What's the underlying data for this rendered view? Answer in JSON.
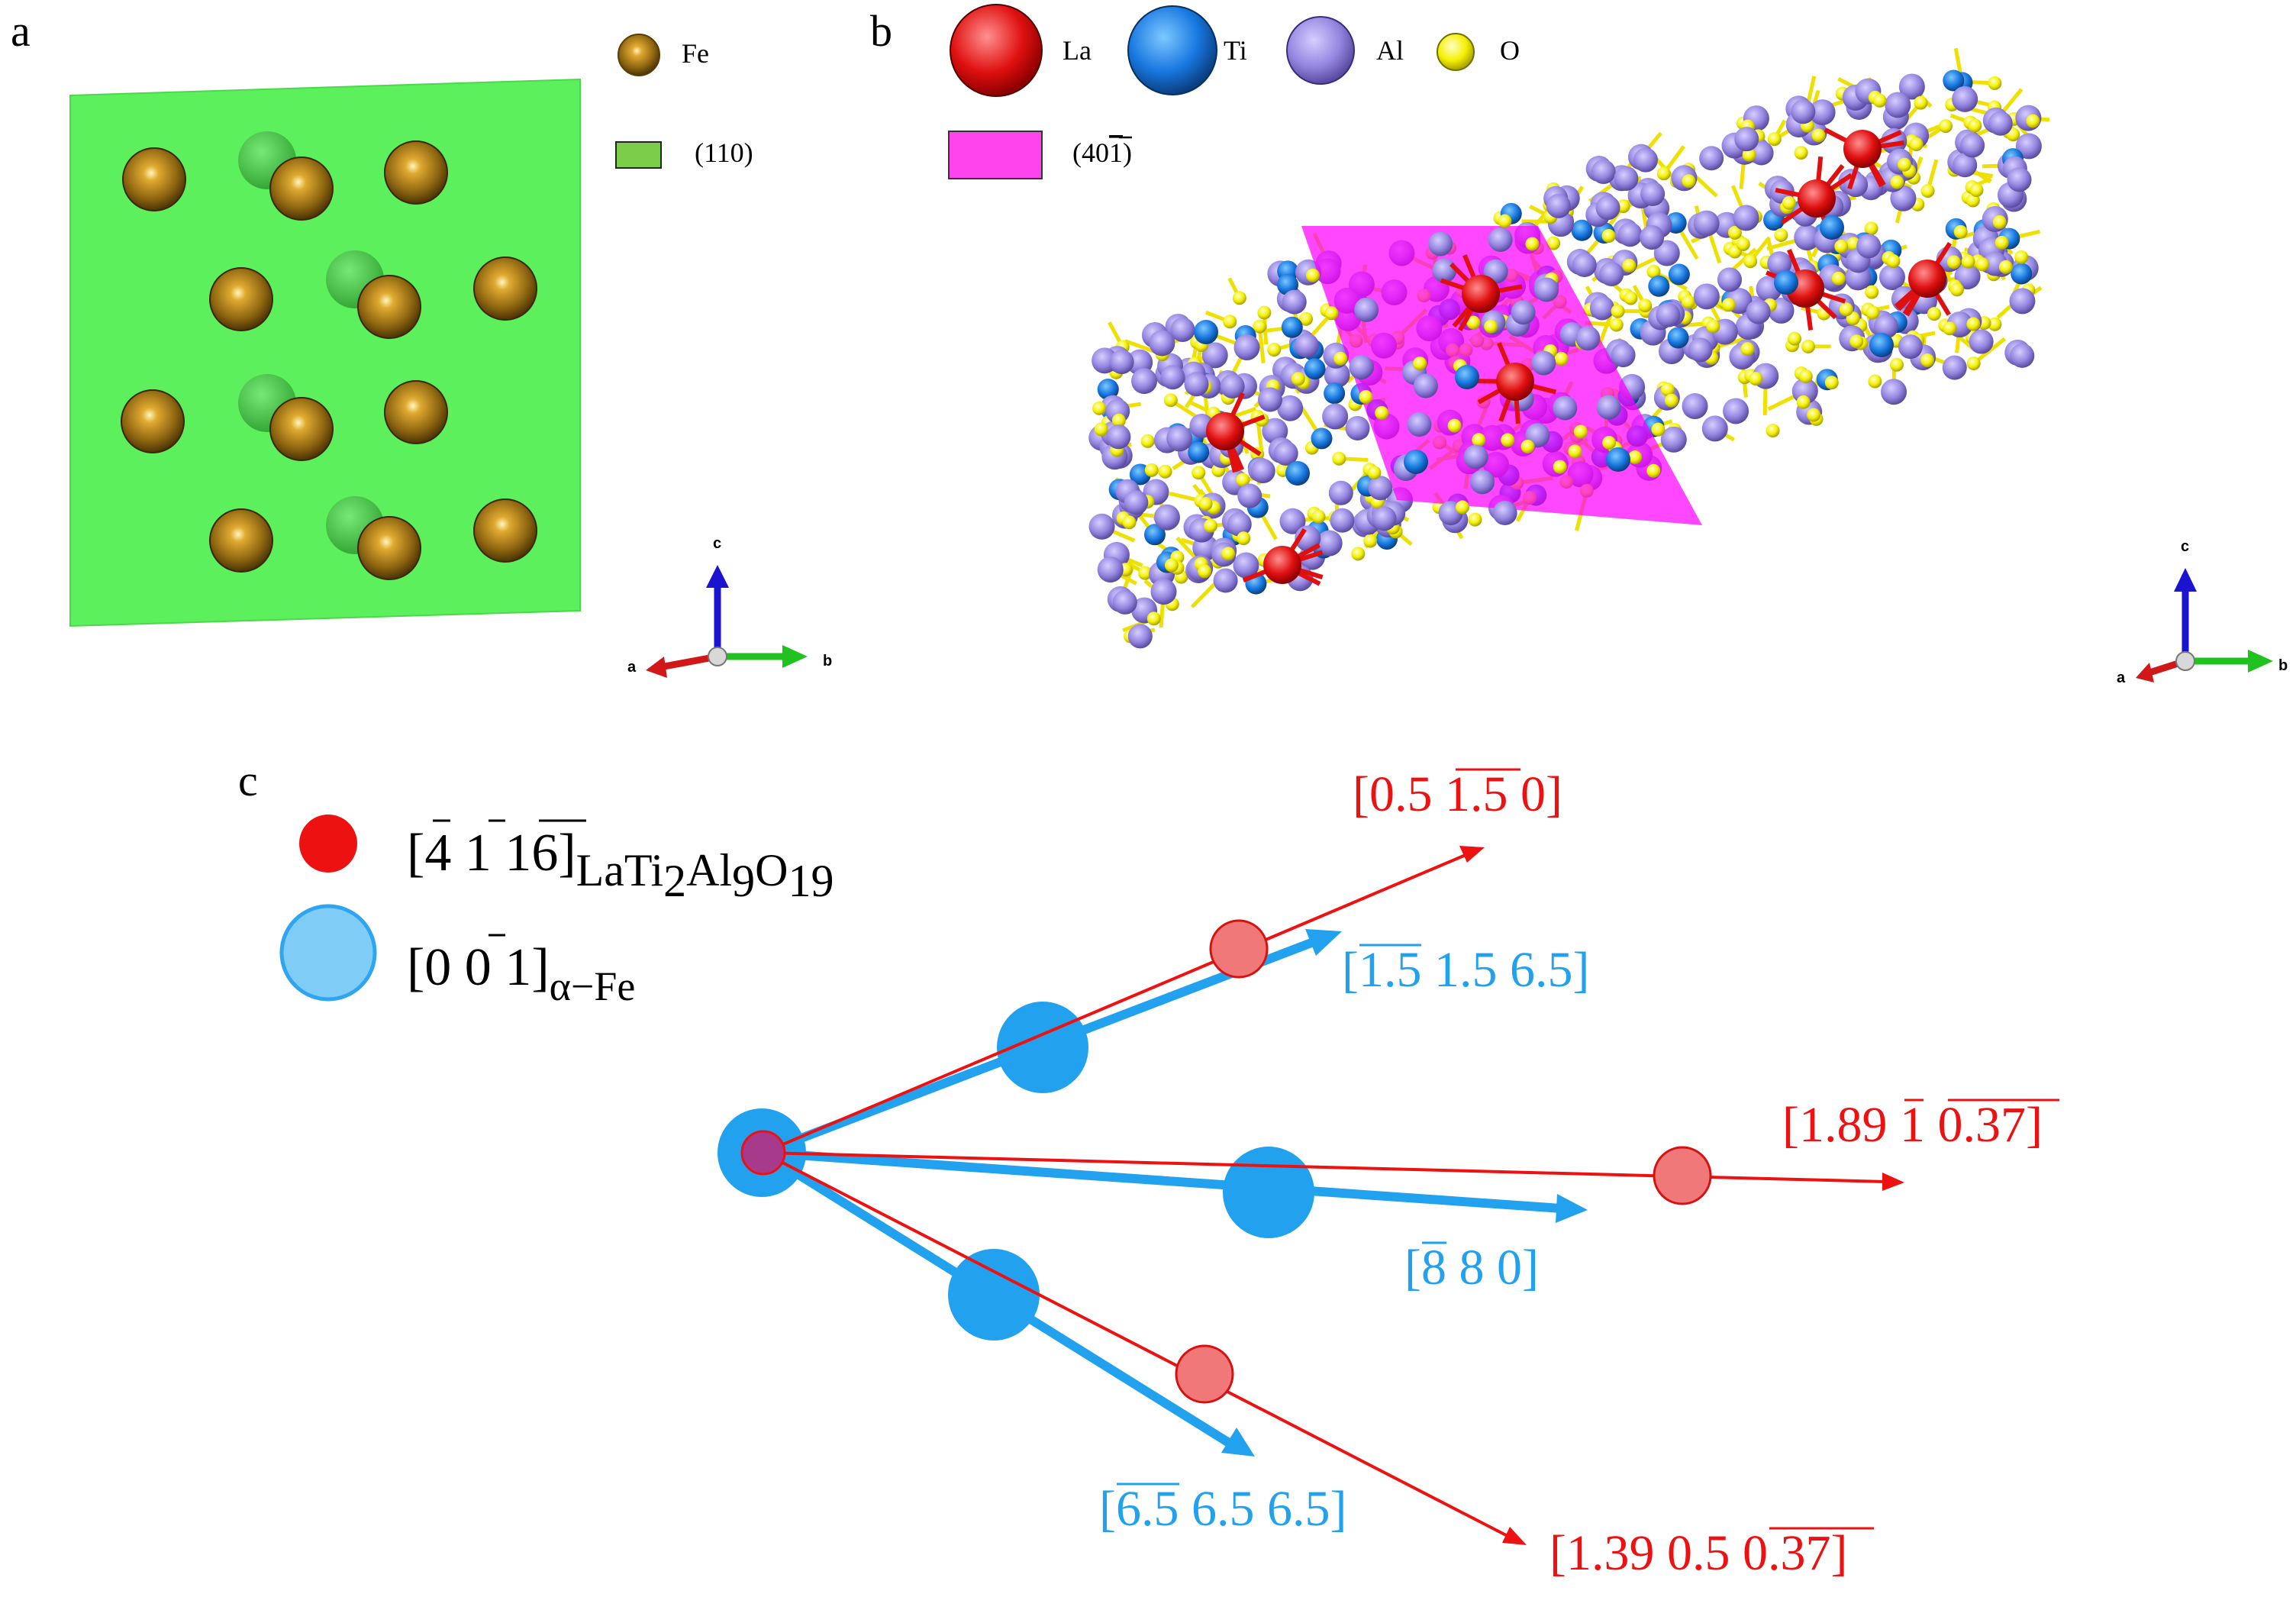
{
  "panel_a": {
    "label": "a",
    "legend": [
      {
        "text": "Fe",
        "color": "#a0700a"
      },
      {
        "text": "(110)",
        "color": "#7ccd4a"
      }
    ],
    "plane_color": "#5cf05c",
    "atom_color": "#8c6410",
    "axes": {
      "a": "a",
      "b": "b",
      "c": "c"
    }
  },
  "panel_b": {
    "label": "b",
    "legend_atoms": [
      {
        "text": "La",
        "color": "#ff0000"
      },
      {
        "text": "Ti",
        "color": "#0a6ee6"
      },
      {
        "text": "Al",
        "color": "#9b87f0"
      },
      {
        "text": "O",
        "color": "#ffff00"
      }
    ],
    "legend_plane": {
      "text": "(40",
      "overbar": "1",
      "close": ")",
      "color": "#ff44ee"
    },
    "axes": {
      "a": "a",
      "b": "b",
      "c": "c"
    }
  },
  "panel_c": {
    "label": "c",
    "legend": {
      "red": {
        "bracket_open": "[",
        "parts": [
          "4",
          "1",
          "16"
        ],
        "bracket_close": "]",
        "subscript_main": "LaTi",
        "s1": "2",
        "al": "Al",
        "s2": "9",
        "o": "O",
        "s3": "19",
        "color": "#ee1111"
      },
      "blue": {
        "bracket_open": "[0 0 ",
        "bar": "1",
        "bracket_close": "]",
        "subscript": "α−Fe",
        "color": "#2fa4f0"
      }
    },
    "red_color": "#ee1111",
    "blue_color": "#22a2ee",
    "vectors": [
      {
        "label_open": "[0.5 ",
        "label_bar": "1.5",
        "label_close": " 0]",
        "color": "red"
      },
      {
        "label_open": "[",
        "label_bar": "1.5",
        "label_close": " 1.5 6.5]",
        "color": "blue"
      },
      {
        "label_open": "[1.89 ",
        "label_bar": "1",
        "label_bar2": "0.37",
        "label_close": "]",
        "color": "red"
      },
      {
        "label_open": "[",
        "label_bar": "8",
        "label_close": " 8 0]",
        "color": "blue"
      },
      {
        "label_open": "[",
        "label_bar": "6.5",
        "label_close": " 6.5 6.5]",
        "color": "blue"
      },
      {
        "label_open": "[1.39 0.5 ",
        "label_bar": "0.37",
        "label_close": "]",
        "color": "red"
      }
    ]
  }
}
